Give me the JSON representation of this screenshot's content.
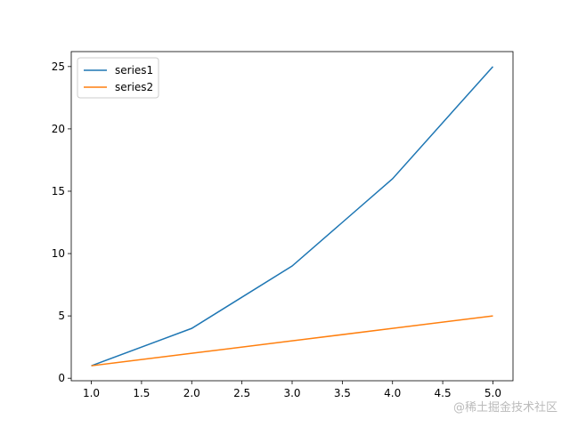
{
  "chart_data": {
    "type": "line",
    "x": [
      1,
      2,
      3,
      4,
      5
    ],
    "series": [
      {
        "name": "series1",
        "color": "#1f77b4",
        "values": [
          1,
          4,
          9,
          16,
          25
        ]
      },
      {
        "name": "series2",
        "color": "#ff7f0e",
        "values": [
          1,
          2,
          3,
          4,
          5
        ]
      }
    ],
    "xlim": [
      0.8,
      5.2
    ],
    "xticks": [
      {
        "value": 1,
        "label": "1.0"
      },
      {
        "value": 1.5,
        "label": "1.5"
      },
      {
        "value": 2,
        "label": "2.0"
      },
      {
        "value": 2.5,
        "label": "2.5"
      },
      {
        "value": 3,
        "label": "3.0"
      },
      {
        "value": 3.5,
        "label": "3.5"
      },
      {
        "value": 4,
        "label": "4.0"
      },
      {
        "value": 4.5,
        "label": "4.5"
      },
      {
        "value": 5,
        "label": "5.0"
      }
    ],
    "ylim": [
      -0.2,
      26.2
    ],
    "yticks": [
      0,
      5,
      10,
      15,
      20,
      25
    ],
    "grid": false,
    "legend": "upper-left",
    "watermark": "@稀土掘金技术社区"
  }
}
